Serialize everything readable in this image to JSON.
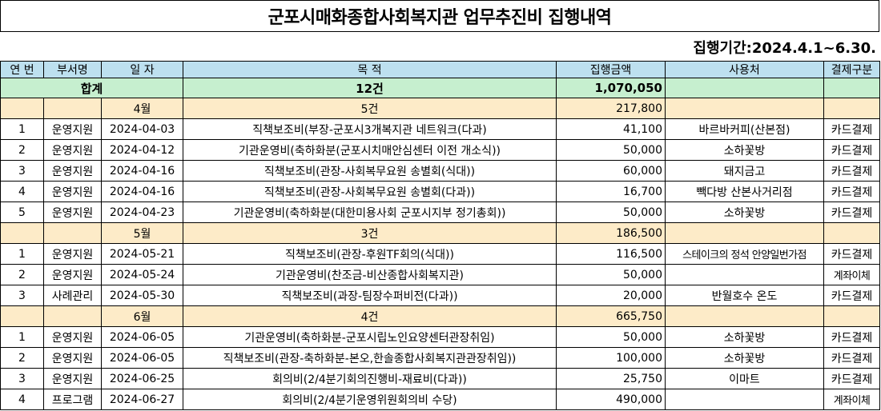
{
  "title": "군포시매화종합사회복지관 업무추진비 집행내역",
  "period": "집행기간:2024.4.1~6.30.",
  "headers": {
    "no": "연 번",
    "dept": "부서명",
    "date": "일  자",
    "purpose": "목         적",
    "amount": "집행금액",
    "vendor": "사용처",
    "payment": "결제구분"
  },
  "total": {
    "label": "합계",
    "count": "12건",
    "amount": "1,070,050"
  },
  "months": [
    {
      "month": "4월",
      "count": "5건",
      "amount": "217,800"
    },
    {
      "month": "5월",
      "count": "3건",
      "amount": "186,500"
    },
    {
      "month": "6월",
      "count": "4건",
      "amount": "665,750"
    }
  ],
  "rows_apr": [
    {
      "no": "1",
      "dept": "운영지원",
      "date": "2024-04-03",
      "purpose": "직책보조비(부장-군포시3개복지관 네트워크(다과)",
      "amount": "41,100",
      "vendor": "바르바커피(산본점)",
      "payment": "카드결제"
    },
    {
      "no": "2",
      "dept": "운영지원",
      "date": "2024-04-12",
      "purpose": "기관운영비(축하화분(군포시치매안심센터 이전 개소식))",
      "amount": "50,000",
      "vendor": "소하꽃방",
      "payment": "카드결제"
    },
    {
      "no": "3",
      "dept": "운영지원",
      "date": "2024-04-16",
      "purpose": "직책보조비(관장-사회복무요원 송별회(식대))",
      "amount": "60,000",
      "vendor": "돼지금고",
      "payment": "카드결제"
    },
    {
      "no": "4",
      "dept": "운영지원",
      "date": "2024-04-16",
      "purpose": "직책보조비(관장-사회복무요원 송별회(다과))",
      "amount": "16,700",
      "vendor": "빽다방 산본사거리점",
      "payment": "카드결제"
    },
    {
      "no": "5",
      "dept": "운영지원",
      "date": "2024-04-23",
      "purpose": "기관운영비(축하화분(대한미용사회 군포시지부 정기총회))",
      "amount": "50,000",
      "vendor": "소하꽃방",
      "payment": "카드결제"
    }
  ],
  "rows_may": [
    {
      "no": "1",
      "dept": "운영지원",
      "date": "2024-05-21",
      "purpose": "직책보조비(관장-후원TF회의(식대))",
      "amount": "116,500",
      "vendor": "스테이크의 정석 안양일번가점",
      "payment": "카드결제"
    },
    {
      "no": "2",
      "dept": "운영지원",
      "date": "2024-05-24",
      "purpose": "기관운영비(찬조금-비산종합사회복지관)",
      "amount": "50,000",
      "vendor": "",
      "payment": "계좌이체"
    },
    {
      "no": "3",
      "dept": "사례관리",
      "date": "2024-05-30",
      "purpose": "직책보조비(과장-팀장수퍼비전(다과))",
      "amount": "20,000",
      "vendor": "반월호수 온도",
      "payment": "카드결제"
    }
  ],
  "rows_jun": [
    {
      "no": "1",
      "dept": "운영지원",
      "date": "2024-06-05",
      "purpose": "기관운영비(축하화분-군포시립노인요양센터관장취임)",
      "amount": "50,000",
      "vendor": "소하꽃방",
      "payment": "카드결제"
    },
    {
      "no": "2",
      "dept": "운영지원",
      "date": "2024-06-05",
      "purpose": "직책보조비(관장-축하화분-본오,한솔종합사회복지관관장취임))",
      "amount": "100,000",
      "vendor": "소하꽃방",
      "payment": "카드결제"
    },
    {
      "no": "3",
      "dept": "운영지원",
      "date": "2024-06-25",
      "purpose": "회의비(2/4분기회의진행비-재료비(다과))",
      "amount": "25,750",
      "vendor": "이마트",
      "payment": "카드결제"
    },
    {
      "no": "4",
      "dept": "프로그램",
      "date": "2024-06-27",
      "purpose": "회의비(2/4분기운영위원회의비 수당)",
      "amount": "490,000",
      "vendor": "",
      "payment": "계좌이체"
    }
  ]
}
